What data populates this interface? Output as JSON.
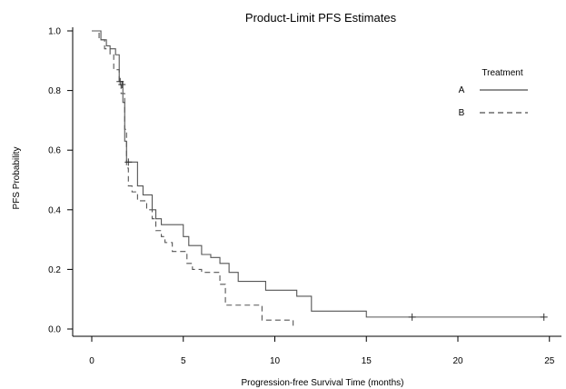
{
  "chart_data": {
    "type": "line",
    "step": true,
    "title": "Product-Limit PFS Estimates",
    "xlabel": "Progression-free Survival Time (months)",
    "ylabel": "PFS Probability",
    "xlim": [
      -1,
      25.5
    ],
    "ylim": [
      -0.03,
      1.0
    ],
    "xticks": [
      0,
      5,
      10,
      15,
      20,
      25
    ],
    "xtick_labels": [
      "0",
      "5",
      "10",
      "15",
      "20",
      "25"
    ],
    "yticks": [
      0.0,
      0.2,
      0.4,
      0.6,
      0.8,
      1.0
    ],
    "ytick_labels": [
      "0.0",
      "0.2",
      "0.4",
      "0.6",
      "0.8",
      "1.0"
    ],
    "grid": false,
    "legend": {
      "title": "Treatment",
      "position": "top-right"
    },
    "series": [
      {
        "name": "A",
        "color": "#555555",
        "dash": "solid",
        "x": [
          0,
          0.5,
          0.8,
          1.0,
          1.3,
          1.5,
          1.7,
          1.8,
          1.9,
          2.0,
          2.5,
          2.8,
          3.0,
          3.3,
          3.5,
          3.8,
          5.0,
          5.3,
          6.0,
          6.5,
          7.0,
          7.5,
          8.0,
          9.5,
          11.2,
          12.0,
          15.0,
          24.7
        ],
        "y": [
          1.0,
          0.97,
          0.95,
          0.94,
          0.92,
          0.83,
          0.76,
          0.63,
          0.56,
          0.56,
          0.48,
          0.45,
          0.45,
          0.4,
          0.37,
          0.35,
          0.31,
          0.28,
          0.25,
          0.24,
          0.22,
          0.19,
          0.16,
          0.13,
          0.11,
          0.06,
          0.04,
          0.04
        ]
      },
      {
        "name": "B",
        "color": "#555555",
        "dash": "dashed",
        "x": [
          0,
          0.4,
          0.7,
          1.0,
          1.2,
          1.5,
          1.6,
          1.8,
          1.9,
          2.0,
          2.2,
          2.5,
          3.0,
          3.3,
          3.5,
          3.8,
          4.0,
          4.4,
          5.2,
          5.5,
          6.0,
          7.0,
          7.3,
          9.3,
          10.0,
          11.0
        ],
        "y": [
          1.0,
          0.97,
          0.94,
          0.92,
          0.87,
          0.82,
          0.79,
          0.67,
          0.54,
          0.48,
          0.46,
          0.43,
          0.4,
          0.37,
          0.33,
          0.31,
          0.29,
          0.26,
          0.22,
          0.2,
          0.19,
          0.15,
          0.08,
          0.03,
          0.03,
          0.0
        ]
      }
    ],
    "censored": [
      {
        "series": "A",
        "points": [
          [
            1.55,
            0.83
          ],
          [
            2.0,
            0.56
          ],
          [
            17.5,
            0.04
          ],
          [
            24.7,
            0.04
          ]
        ]
      },
      {
        "series": "B",
        "points": [
          [
            1.65,
            0.82
          ]
        ]
      }
    ]
  }
}
